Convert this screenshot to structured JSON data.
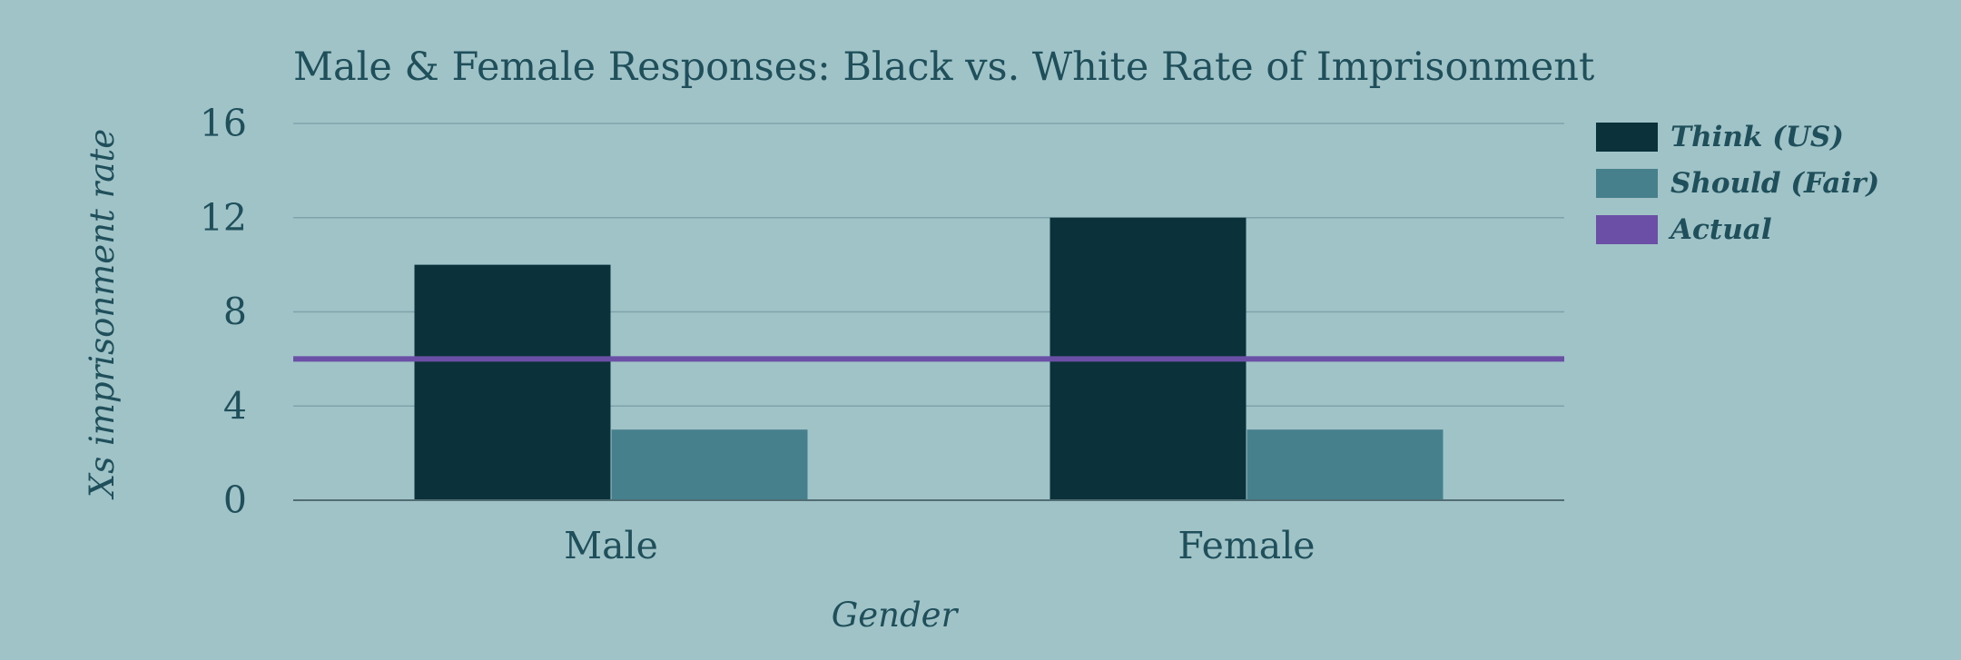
{
  "chart_data": {
    "type": "bar",
    "title": "Male & Female Responses: Black vs. White Rate of Imprisonment",
    "xlabel": "Gender",
    "ylabel": "Xs imprisonment rate",
    "categories": [
      "Male",
      "Female"
    ],
    "series": [
      {
        "name": "Think (US)",
        "values": [
          10,
          12
        ],
        "color": "#0b313b"
      },
      {
        "name": "Should (Fair)",
        "values": [
          3,
          3
        ],
        "color": "#46808c"
      }
    ],
    "reference_line": {
      "name": "Actual",
      "value": 6,
      "color": "#6b4fa6"
    },
    "ylim": [
      0,
      16
    ],
    "yticks": [
      0,
      4,
      8,
      12,
      16
    ],
    "grid": true,
    "legend_position": "right"
  }
}
